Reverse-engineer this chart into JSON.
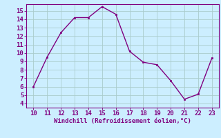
{
  "x": [
    10,
    11,
    12,
    13,
    14,
    15,
    16,
    17,
    18,
    19,
    20,
    21,
    22,
    23
  ],
  "y": [
    6.0,
    9.5,
    12.4,
    14.2,
    14.2,
    15.5,
    14.6,
    10.2,
    8.9,
    8.6,
    6.7,
    4.5,
    5.1,
    9.4
  ],
  "line_color": "#800080",
  "marker": "s",
  "marker_size": 2,
  "background_color": "#cceeff",
  "grid_color": "#aacccc",
  "xlabel": "Windchill (Refroidissement éolien,°C)",
  "xlabel_color": "#800080",
  "tick_color": "#800080",
  "xlim": [
    9.5,
    23.5
  ],
  "ylim": [
    3.5,
    15.8
  ],
  "xticks": [
    10,
    11,
    12,
    13,
    14,
    15,
    16,
    17,
    18,
    19,
    20,
    21,
    22,
    23
  ],
  "yticks": [
    4,
    5,
    6,
    7,
    8,
    9,
    10,
    11,
    12,
    13,
    14,
    15
  ],
  "line_width": 1.0,
  "tick_fontsize": 6.5,
  "xlabel_fontsize": 6.5
}
